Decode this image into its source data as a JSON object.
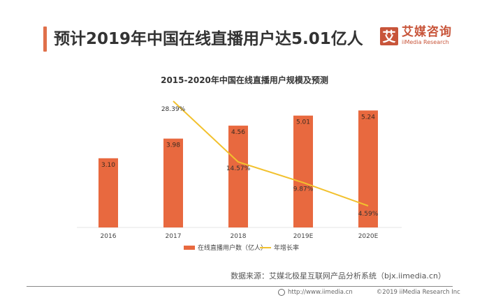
{
  "header": {
    "title": "预计2019年中国在线直播用户达5.01亿人",
    "accent_color": "#e0704a"
  },
  "logo": {
    "icon_char": "艾",
    "name_cn": "艾媒咨询",
    "name_en": "iiMedia Research",
    "color": "#c8553a"
  },
  "chart_data": {
    "type": "bar",
    "title": "2015-2020年中国在线直播用户规模及预测",
    "categories": [
      "2016",
      "2017",
      "2018",
      "2019E",
      "2020E"
    ],
    "series": [
      {
        "name": "在线直播用户数（亿人）",
        "type": "bar",
        "color": "#e8693f",
        "values": [
          3.1,
          3.98,
          4.56,
          5.01,
          5.24
        ],
        "labels": [
          "3.10",
          "3.98",
          "4.56",
          "5.01",
          "5.24"
        ]
      },
      {
        "name": "年增长率",
        "type": "line",
        "color": "#f2c12e",
        "values": [
          null,
          28.39,
          14.57,
          9.87,
          4.59
        ],
        "labels": [
          "",
          "28.39%",
          "14.57%",
          "9.87%",
          "4.59%"
        ]
      }
    ],
    "xlabel": "",
    "ylabel": "",
    "ylim": [
      0,
      6
    ],
    "y2lim": [
      0,
      35
    ],
    "grid": false,
    "legend": "bottom-center"
  },
  "source": "数据来源：艾媒北极星互联网产品分析系统（bjx.iimedia.cn）",
  "footer": {
    "url": "http://www.iimedia.cn",
    "copyright": "©2019 iiMedia Research Inc"
  }
}
